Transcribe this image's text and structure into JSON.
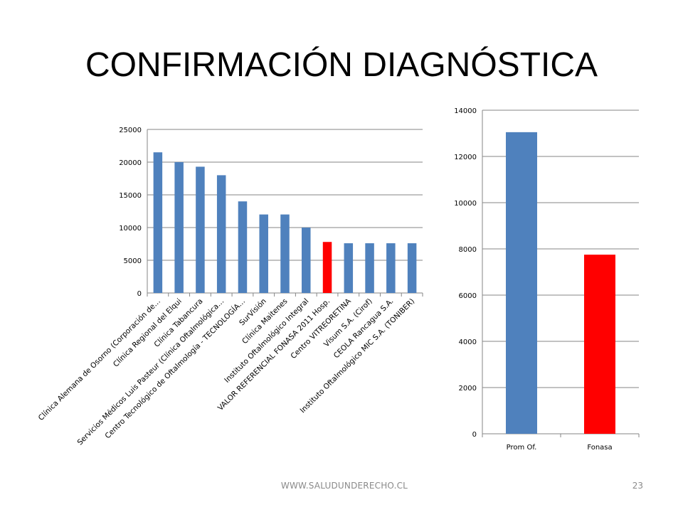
{
  "slide": {
    "title": "CONFIRMACIÓN DIAGNÓSTICA",
    "footer_url": "WWW.SALUDUNDERECHO.CL",
    "page_number": "23"
  },
  "colors": {
    "bar_blue": "#4f81bd",
    "bar_red": "#ff0000",
    "gridline": "#868686",
    "axis": "#868686"
  },
  "chart_data": [
    {
      "type": "bar",
      "categories": [
        "Clínica Alemana de Osorno (Corporación de…",
        "Clínica Regional del Elqui",
        "Clínica Tabancura",
        "Servicios Médicos Luis Pasteur (Clínica Oftalmológica…",
        "Centro Tecnológico de Oftalmología - TECNOLOGÍA…",
        "SurVisión",
        "Clínica Maitenes",
        "Instituto Oftalmológico Integral",
        "VALOR REFERENCIAL FONASA 2011 Hosp.",
        "Centro VITREORETINA",
        "Visum S.A. (Cirof)",
        "CEOLA Rancagua S.A.",
        "Instituto Oftalmológico MIC S.A. (TONIBER)"
      ],
      "values": [
        21500,
        20000,
        19300,
        18000,
        14000,
        12000,
        12000,
        10000,
        7800,
        7600,
        7600,
        7600,
        7600
      ],
      "highlight_index": 8,
      "ylim": [
        0,
        25000
      ],
      "yticks": [
        0,
        5000,
        10000,
        15000,
        20000,
        25000
      ],
      "grid": true,
      "legend": "none"
    },
    {
      "type": "bar",
      "categories": [
        "Prom Of.",
        "Fonasa"
      ],
      "values": [
        13050,
        7750
      ],
      "highlight_index": 1,
      "ylim": [
        0,
        14000
      ],
      "yticks": [
        0,
        2000,
        4000,
        6000,
        8000,
        10000,
        12000,
        14000
      ],
      "grid": true,
      "legend": "none"
    }
  ]
}
